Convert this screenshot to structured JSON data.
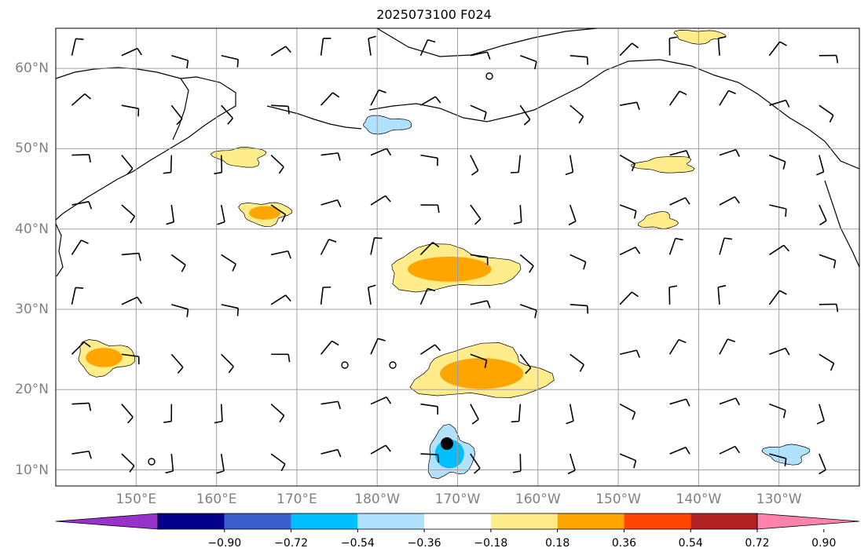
{
  "title": "2025073100 F024",
  "map": {
    "lon_range": [
      140,
      240
    ],
    "lat_range": [
      8,
      65
    ],
    "lon_ticks": [
      {
        "lon": 150,
        "label": "150°E"
      },
      {
        "lon": 160,
        "label": "160°E"
      },
      {
        "lon": 170,
        "label": "170°E"
      },
      {
        "lon": 180,
        "label": "180°W"
      },
      {
        "lon": 190,
        "label": "170°W"
      },
      {
        "lon": 200,
        "label": "160°W"
      },
      {
        "lon": 210,
        "label": "150°W"
      },
      {
        "lon": 220,
        "label": "140°W"
      },
      {
        "lon": 230,
        "label": "130°W"
      }
    ],
    "lat_ticks": [
      {
        "lat": 10,
        "label": "10°N"
      },
      {
        "lat": 20,
        "label": "20°N"
      },
      {
        "lat": 30,
        "label": "30°N"
      },
      {
        "lat": 40,
        "label": "40°N"
      },
      {
        "lat": 50,
        "label": "50°N"
      },
      {
        "lat": 60,
        "label": "60°N"
      }
    ],
    "grid": true
  },
  "colorbar": {
    "colors": [
      "#9932cc",
      "#00008b",
      "#3a5fcd",
      "#00bfff",
      "#b0e2ff",
      "#ffffff",
      "#ffec8b",
      "#ffa500",
      "#ff4500",
      "#b22222",
      "#ff82ab"
    ],
    "labels": [
      "−0.90",
      "−0.72",
      "−0.54",
      "−0.36",
      "−0.18",
      "0.18",
      "0.36",
      "0.54",
      "0.72",
      "0.90"
    ],
    "extend": "both"
  },
  "anomaly_regions": [
    {
      "name": "hawaii-positive",
      "center": [
        193,
        22
      ],
      "radii": [
        8,
        3.2
      ],
      "level": 0.45
    },
    {
      "name": "central-positive",
      "center": [
        189,
        35
      ],
      "radii": [
        8,
        2.6
      ],
      "level": 0.42
    },
    {
      "name": "west-positive",
      "center": [
        146,
        24
      ],
      "radii": [
        3.5,
        2.0
      ],
      "level": 0.44
    },
    {
      "name": "kuril-positive",
      "center": [
        166,
        42
      ],
      "radii": [
        3.0,
        1.4
      ],
      "level": 0.4
    },
    {
      "name": "kamchatka-positive",
      "center": [
        163,
        49
      ],
      "radii": [
        3.0,
        1.2
      ],
      "level": 0.25
    },
    {
      "name": "east-positive",
      "center": [
        216,
        48
      ],
      "radii": [
        3.5,
        1.0
      ],
      "level": 0.25
    },
    {
      "name": "east-positive-2",
      "center": [
        215,
        41
      ],
      "radii": [
        2.2,
        1.0
      ],
      "level": 0.25
    },
    {
      "name": "south-negative",
      "center": [
        189,
        12
      ],
      "radii": [
        2.8,
        3.0
      ],
      "level": -0.4
    },
    {
      "name": "aleutian-negative",
      "center": [
        181,
        53
      ],
      "radii": [
        3.0,
        1.0
      ],
      "level": -0.25
    },
    {
      "name": "gulf-positive",
      "center": [
        220,
        64
      ],
      "radii": [
        3.0,
        0.8
      ],
      "level": 0.3
    },
    {
      "name": "east-negative",
      "center": [
        231,
        12
      ],
      "radii": [
        2.6,
        1.2
      ],
      "level": -0.25
    }
  ]
}
